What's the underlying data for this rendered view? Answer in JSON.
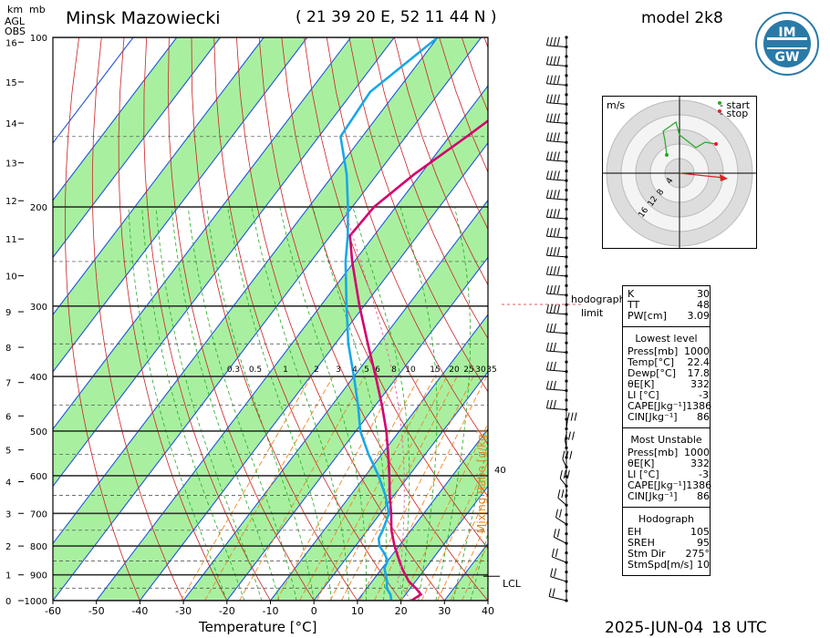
{
  "header": {
    "station": "Minsk Mazowiecki",
    "coords": "( 21 39 20 E, 52 11 44 N )",
    "model": "model 2k8",
    "date": "2025-JUN-04",
    "time": "18 UTC"
  },
  "logo": {
    "top_text": "IMGW",
    "mark": "IM",
    "mark2": "GW"
  },
  "left_labels": {
    "km": "km",
    "agl": "AGL",
    "obs": "OBS",
    "mb": "mb"
  },
  "chart_data": {
    "type": "skew-t",
    "xlabel": "Temperature [°C]",
    "mixing_label": "Mixing Ratio [g/kg]",
    "xlim": [
      -60,
      40
    ],
    "ylim_hpa": [
      1000,
      100
    ],
    "log_y": true,
    "grid": true,
    "x_ticks": [
      "-60",
      "-50",
      "-40",
      "-30",
      "-20",
      "-10",
      "0",
      "10",
      "20",
      "30",
      "40"
    ],
    "pressure_ticks": [
      "100",
      "200",
      "300",
      "400",
      "500",
      "600",
      "700",
      "800",
      "900",
      "1000"
    ],
    "km_ticks": [
      "0",
      "1",
      "2",
      "3",
      "4",
      "5",
      "6",
      "7",
      "8",
      "9",
      "10",
      "11",
      "12",
      "13",
      "14",
      "15",
      "16"
    ],
    "mixing_ratio_labels": [
      "0.3",
      "0.5",
      "1",
      "2",
      "3",
      "4",
      "5",
      "6",
      "8",
      "10",
      "15",
      "20",
      "25",
      "30",
      "35"
    ],
    "theta_e_label": "40",
    "lcl_label": "LCL",
    "hodo_label_1": "hodograph",
    "hodo_label_2": "limit",
    "temperature": {
      "p": [
        1000,
        975,
        950,
        925,
        900,
        875,
        850,
        800,
        750,
        700,
        650,
        600,
        550,
        500,
        450,
        400,
        350,
        300,
        250,
        225,
        200,
        175,
        150,
        125,
        100
      ],
      "t": [
        22.4,
        23.5,
        21.2,
        18.5,
        16.5,
        14.5,
        12.7,
        9.0,
        5.5,
        2.5,
        -1.0,
        -4.5,
        -8.5,
        -13.0,
        -18.5,
        -25.0,
        -32.5,
        -41.0,
        -50.5,
        -55.5,
        -55.0,
        -51.5,
        -46.0,
        -40.0,
        -34.0
      ]
    },
    "dewpoint": {
      "p": [
        1000,
        975,
        950,
        925,
        900,
        875,
        850,
        825,
        800,
        775,
        750,
        700,
        650,
        600,
        550,
        500,
        450,
        400,
        350,
        300,
        250,
        225,
        200,
        175,
        150,
        125,
        100
      ],
      "t": [
        17.8,
        16.5,
        14.5,
        13.5,
        12.0,
        10.5,
        10.0,
        8.0,
        5.5,
        4.0,
        3.5,
        2.0,
        -2.0,
        -7.0,
        -13.0,
        -19.0,
        -24.0,
        -30.0,
        -37.0,
        -44.0,
        -52.0,
        -56.0,
        -61.0,
        -67.0,
        -75.0,
        -76.0,
        -70.0
      ]
    }
  },
  "hodograph": {
    "unit": "m/s",
    "legend_start": "- start",
    "legend_stop": "- stop",
    "ring_labels": [
      "4",
      "8",
      "12",
      "16"
    ],
    "start_color": "#22aa22",
    "stop_color": "#dd2222"
  },
  "indices": {
    "top": [
      {
        "k": "K",
        "v": "30"
      },
      {
        "k": "TT",
        "v": "48"
      },
      {
        "k": "PW[cm]",
        "v": "3.09"
      }
    ],
    "lowest_title": "Lowest level",
    "lowest": [
      {
        "k": "Press[mb]",
        "v": "1000"
      },
      {
        "k": "Temp[°C]",
        "v": "22.4"
      },
      {
        "k": "Dewp[°C]",
        "v": "17.8"
      },
      {
        "k": "θE[K]",
        "v": "332"
      },
      {
        "k": "LI [°C]",
        "v": "-3"
      },
      {
        "k": "CAPE[Jkg⁻¹]",
        "v": "1386"
      },
      {
        "k": "CIN[Jkg⁻¹]",
        "v": "86"
      }
    ],
    "unstable_title": "Most Unstable",
    "unstable": [
      {
        "k": "Press[mb]",
        "v": "1000"
      },
      {
        "k": "θE[K]",
        "v": "332"
      },
      {
        "k": "LI [°C]",
        "v": "-3"
      },
      {
        "k": "CAPE[Jkg⁻¹]",
        "v": "1386"
      },
      {
        "k": "CIN[Jkg⁻¹]",
        "v": "86"
      }
    ],
    "hodo_title": "Hodograph",
    "hodo": [
      {
        "k": "EH",
        "v": "105"
      },
      {
        "k": "SREH",
        "v": "95"
      },
      {
        "k": "Stm Dir",
        "v": "275°"
      },
      {
        "k": "StmSpd[m/s]",
        "v": "10"
      }
    ]
  },
  "colors": {
    "temp": "#d4006e",
    "dew": "#18a8e8",
    "green": "#a8f0a0",
    "isotherm": "#2255dd",
    "dry": "#cc2222",
    "moist": "#22aa22",
    "mix": "#ee8822"
  }
}
